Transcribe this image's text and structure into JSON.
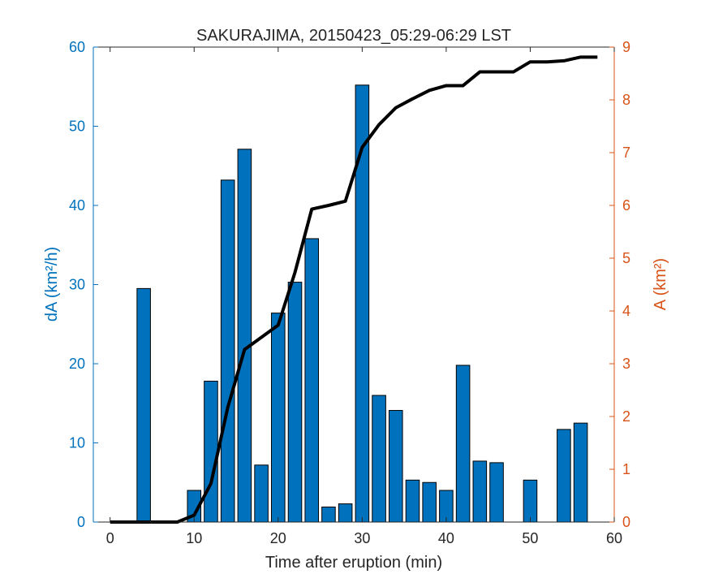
{
  "chart_data": {
    "type": "bar",
    "title": "SAKURAJIMA, 20150423_05:29-06:29 LST",
    "xlabel": "Time after eruption (min)",
    "ylabel_left": "dA (km²/h)",
    "ylabel_right": "A (km²)",
    "xlim": [
      -2,
      60
    ],
    "ylim_left": [
      0,
      60
    ],
    "ylim_right": [
      0,
      9
    ],
    "x_ticks": [
      "0",
      "10",
      "20",
      "30",
      "40",
      "50",
      "60"
    ],
    "y_ticks_left": [
      "0",
      "10",
      "20",
      "30",
      "40",
      "50",
      "60"
    ],
    "y_ticks_right": [
      "0",
      "1",
      "2",
      "3",
      "4",
      "5",
      "6",
      "7",
      "8",
      "9"
    ],
    "grid": false,
    "legend": "none",
    "colors": {
      "bars": "#0072bd",
      "bar_edge": "#000000",
      "left_axis": "#0072bd",
      "right_axis": "#d95319",
      "line": "#000000"
    },
    "bars": {
      "x": [
        4,
        10,
        12,
        14,
        16,
        18,
        20,
        22,
        24,
        26,
        28,
        30,
        32,
        34,
        36,
        38,
        40,
        42,
        44,
        46,
        50,
        54,
        56
      ],
      "values": [
        29.5,
        4.0,
        17.8,
        43.2,
        47.1,
        7.2,
        26.4,
        30.3,
        35.8,
        1.9,
        2.3,
        55.2,
        16.0,
        14.1,
        5.3,
        5.0,
        4.0,
        19.8,
        7.7,
        7.5,
        5.3,
        11.7,
        12.5
      ]
    },
    "line": {
      "x": [
        0,
        2,
        4,
        6,
        8,
        10,
        12,
        14,
        16,
        18,
        20,
        22,
        24,
        26,
        28,
        30,
        32,
        34,
        36,
        38,
        40,
        42,
        44,
        46,
        48,
        50,
        52,
        54,
        56,
        58
      ],
      "values": [
        0,
        0,
        0,
        0,
        0,
        0.13,
        0.73,
        2.17,
        3.27,
        3.5,
        3.73,
        4.73,
        5.93,
        6.0,
        6.08,
        7.1,
        7.53,
        7.85,
        8.02,
        8.18,
        8.27,
        8.27,
        8.53,
        8.53,
        8.53,
        8.72,
        8.72,
        8.74,
        8.81,
        8.81
      ]
    }
  }
}
